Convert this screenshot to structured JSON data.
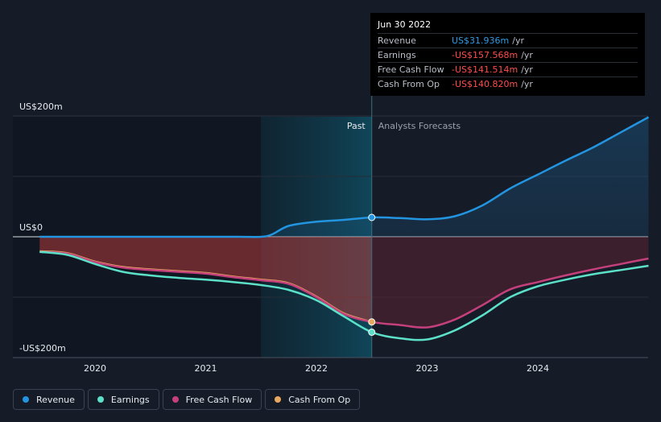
{
  "tooltip": {
    "date": "Jun 30 2022",
    "rows": [
      {
        "label": "Revenue",
        "value": "US$31.936m",
        "unit": "/yr",
        "color": "#2f9be5"
      },
      {
        "label": "Earnings",
        "value": "-US$157.568m",
        "unit": "/yr",
        "color": "#ff4d4d"
      },
      {
        "label": "Free Cash Flow",
        "value": "-US$141.514m",
        "unit": "/yr",
        "color": "#ff4d4d"
      },
      {
        "label": "Cash From Op",
        "value": "-US$140.820m",
        "unit": "/yr",
        "color": "#ff4d4d"
      }
    ]
  },
  "legend": [
    {
      "label": "Revenue",
      "color": "#2394df"
    },
    {
      "label": "Earnings",
      "color": "#5ce0c8"
    },
    {
      "label": "Free Cash Flow",
      "color": "#c4407c"
    },
    {
      "label": "Cash From Op",
      "color": "#e8a860"
    }
  ],
  "chart_data": {
    "type": "line",
    "y_tick_labels": [
      "US$200m",
      "US$0",
      "-US$200m"
    ],
    "y_ticks": [
      200,
      0,
      -200
    ],
    "ylim": [
      -200,
      200
    ],
    "xlim": [
      2019.5,
      2025.0
    ],
    "x_ticks": [
      2020,
      2021,
      2022,
      2023,
      2024
    ],
    "x_tick_labels": [
      "2020",
      "2021",
      "2022",
      "2023",
      "2024"
    ],
    "past_label": "Past",
    "forecast_label": "Analysts Forecasts",
    "past_shade_start": 2021.5,
    "divider_x": 2022.5,
    "grid": true,
    "series": [
      {
        "name": "Revenue",
        "color": "#2394df",
        "x": [
          2019.5,
          2020.0,
          2020.5,
          2021.0,
          2021.3,
          2021.5,
          2021.6,
          2021.75,
          2022.0,
          2022.25,
          2022.5,
          2022.75,
          2023.0,
          2023.25,
          2023.5,
          2023.75,
          2024.0,
          2024.25,
          2024.5,
          2024.75,
          2025.0
        ],
        "y": [
          0,
          0,
          0,
          0,
          0,
          0,
          4,
          18,
          25,
          28,
          32,
          31,
          29,
          34,
          52,
          80,
          103,
          126,
          148,
          173,
          198
        ]
      },
      {
        "name": "Earnings",
        "color": "#5ce0c8",
        "x": [
          2019.5,
          2019.75,
          2020.0,
          2020.25,
          2020.5,
          2020.75,
          2021.0,
          2021.25,
          2021.5,
          2021.75,
          2022.0,
          2022.25,
          2022.5,
          2022.75,
          2023.0,
          2023.25,
          2023.5,
          2023.75,
          2024.0,
          2024.25,
          2024.5,
          2024.75,
          2025.0
        ],
        "y": [
          -25,
          -30,
          -45,
          -58,
          -64,
          -68,
          -71,
          -75,
          -80,
          -88,
          -105,
          -132,
          -158,
          -168,
          -170,
          -155,
          -130,
          -100,
          -82,
          -71,
          -62,
          -55,
          -48
        ]
      },
      {
        "name": "Free Cash Flow",
        "color": "#c4407c",
        "x": [
          2019.5,
          2019.75,
          2020.0,
          2020.25,
          2020.5,
          2020.75,
          2021.0,
          2021.25,
          2021.5,
          2021.75,
          2022.0,
          2022.25,
          2022.5,
          2022.75,
          2023.0,
          2023.25,
          2023.5,
          2023.75,
          2024.0,
          2024.25,
          2024.5,
          2024.75,
          2025.0
        ],
        "y": [
          -25,
          -28,
          -42,
          -51,
          -55,
          -58,
          -61,
          -67,
          -72,
          -78,
          -100,
          -128,
          -141,
          -146,
          -150,
          -137,
          -113,
          -87,
          -75,
          -64,
          -54,
          -45,
          -36
        ]
      },
      {
        "name": "Cash From Op",
        "color": "#e8a860",
        "x": [
          2019.5,
          2019.75,
          2020.0,
          2020.25,
          2020.5,
          2020.75,
          2021.0,
          2021.25,
          2021.5,
          2021.75,
          2022.0,
          2022.25,
          2022.5
        ],
        "y": [
          -24,
          -27,
          -41,
          -50,
          -54,
          -57,
          -60,
          -66,
          -71,
          -77,
          -99,
          -127,
          -141
        ]
      }
    ]
  }
}
